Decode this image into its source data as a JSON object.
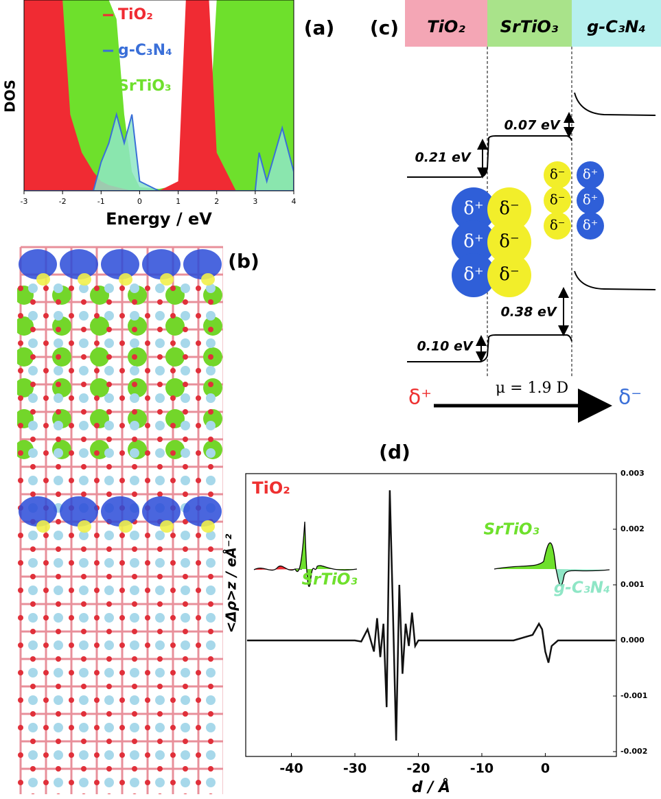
{
  "panel_labels": [
    "(a)",
    "(b)",
    "(c)",
    "(d)"
  ],
  "chart_data": [
    {
      "type": "area",
      "xlabel": "Energy / eV",
      "ylabel": "DOS",
      "xlim": [
        -3,
        4
      ],
      "xticks": [
        -3,
        -2,
        -1,
        0,
        1,
        2,
        3,
        4
      ],
      "ylim": [
        0,
        10
      ],
      "x": [
        -3,
        -2.5,
        -2,
        -1.8,
        -1.5,
        -1.2,
        -1,
        -0.8,
        -0.6,
        -0.4,
        -0.2,
        0,
        0.5,
        1,
        1.2,
        1.5,
        1.8,
        2,
        2.5,
        3,
        3.1,
        3.3,
        3.7,
        4
      ],
      "series": [
        {
          "name": "SrTiO₃",
          "color": "#6ee02c",
          "values": [
            10,
            10,
            10,
            10,
            10,
            10,
            10,
            10,
            9,
            4,
            1,
            0.2,
            0.1,
            0.3,
            3,
            3.5,
            3,
            10,
            10,
            10,
            10,
            10,
            10,
            10
          ]
        },
        {
          "name": "TiO₂",
          "color": "#f02b33",
          "values": [
            10,
            10,
            10,
            4,
            2,
            1,
            0.5,
            0.3,
            0.2,
            0.1,
            0,
            0,
            0,
            0.5,
            10,
            10,
            10,
            2,
            0,
            0,
            0,
            0,
            0,
            0
          ]
        },
        {
          "name": "g-C₃N₄",
          "color": "#3a6fd8",
          "values": [
            0,
            0,
            0,
            0,
            0,
            0,
            1.5,
            2.5,
            4,
            2.5,
            4,
            0.5,
            0,
            0,
            0,
            0,
            0,
            0,
            0,
            0,
            2,
            0.5,
            3.3,
            1
          ]
        }
      ]
    },
    {
      "type": "line",
      "xlabel": "d / Å",
      "ylabel": "<Δρ>z / eÅ⁻²",
      "xlim": [
        -47.2,
        11.2
      ],
      "xticks": [
        -40,
        -30,
        -20,
        -10,
        0
      ],
      "ylim": [
        -0.002,
        0.003
      ],
      "yticks": [
        0.003,
        0.002,
        0.001,
        {
          "value": 0,
          "label": "0.000"
        },
        -0.001,
        -0.002
      ],
      "x": [
        -47,
        -30,
        -29,
        -28,
        -27,
        -26.5,
        -26,
        -25.5,
        -25,
        -24.5,
        -24,
        -23.5,
        -23,
        -22.5,
        -22,
        -21.5,
        -21,
        -20.5,
        -20,
        -18,
        -10,
        -5,
        -2,
        -1,
        -0.5,
        0,
        0.5,
        1,
        2,
        5,
        11
      ],
      "values": [
        0,
        0,
        -2e-05,
        0.0002,
        -0.0002,
        0.0004,
        -0.0003,
        0.0003,
        -0.0012,
        0.0027,
        0.0005,
        -0.0018,
        0.001,
        -0.0006,
        0.0003,
        -0.0001,
        0.0005,
        -0.0001,
        0,
        0,
        0,
        0,
        0.0001,
        0.0003,
        0.0002,
        -0.0002,
        -0.0004,
        -0.0001,
        0,
        0,
        0
      ],
      "color": "#111111",
      "annotations": [
        "TiO₂",
        "SrTiO₃",
        "SrTiO₃",
        "g-C₃N₄"
      ]
    }
  ],
  "diagram": {
    "layers": [
      "TiO₂",
      "SrTiO₃",
      "g-C₃N₄"
    ],
    "offsets": [
      "0.21 eV",
      "0.07 eV",
      "0.38 eV",
      "0.10 eV"
    ],
    "charges": {
      "left": [
        "δ⁺",
        "δ⁺",
        "δ⁺"
      ],
      "left_mid": [
        "δ⁻",
        "δ⁻",
        "δ⁻"
      ],
      "right_mid": [
        "δ⁻",
        "δ⁻",
        "δ⁻"
      ],
      "right": [
        "δ⁺",
        "δ⁺",
        "δ⁺"
      ]
    },
    "dipole": "μ = 1.9 D",
    "arrow": [
      "δ⁺",
      "δ⁻"
    ]
  }
}
